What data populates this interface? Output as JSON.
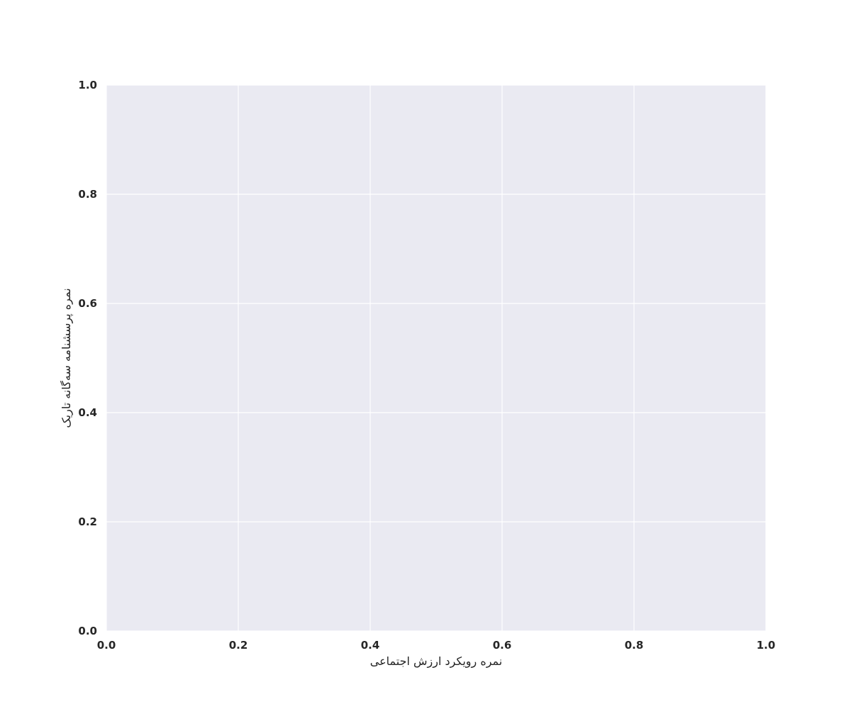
{
  "chart_data": {
    "type": "scatter",
    "title": "",
    "xlabel": "نمره رویکرد ارزش اجتماعی",
    "ylabel": "نمره پرسشنامه سه‌گانه تاریک",
    "xlim": [
      0.0,
      1.0
    ],
    "ylim": [
      0.0,
      1.0
    ],
    "x_ticks": [
      "0.0",
      "0.2",
      "0.4",
      "0.6",
      "0.8",
      "1.0"
    ],
    "y_ticks": [
      "0.0",
      "0.2",
      "0.4",
      "0.6",
      "0.8",
      "1.0"
    ],
    "grid": true,
    "series": [],
    "background_color": "#eaeaf2",
    "grid_color": "#ffffff"
  }
}
